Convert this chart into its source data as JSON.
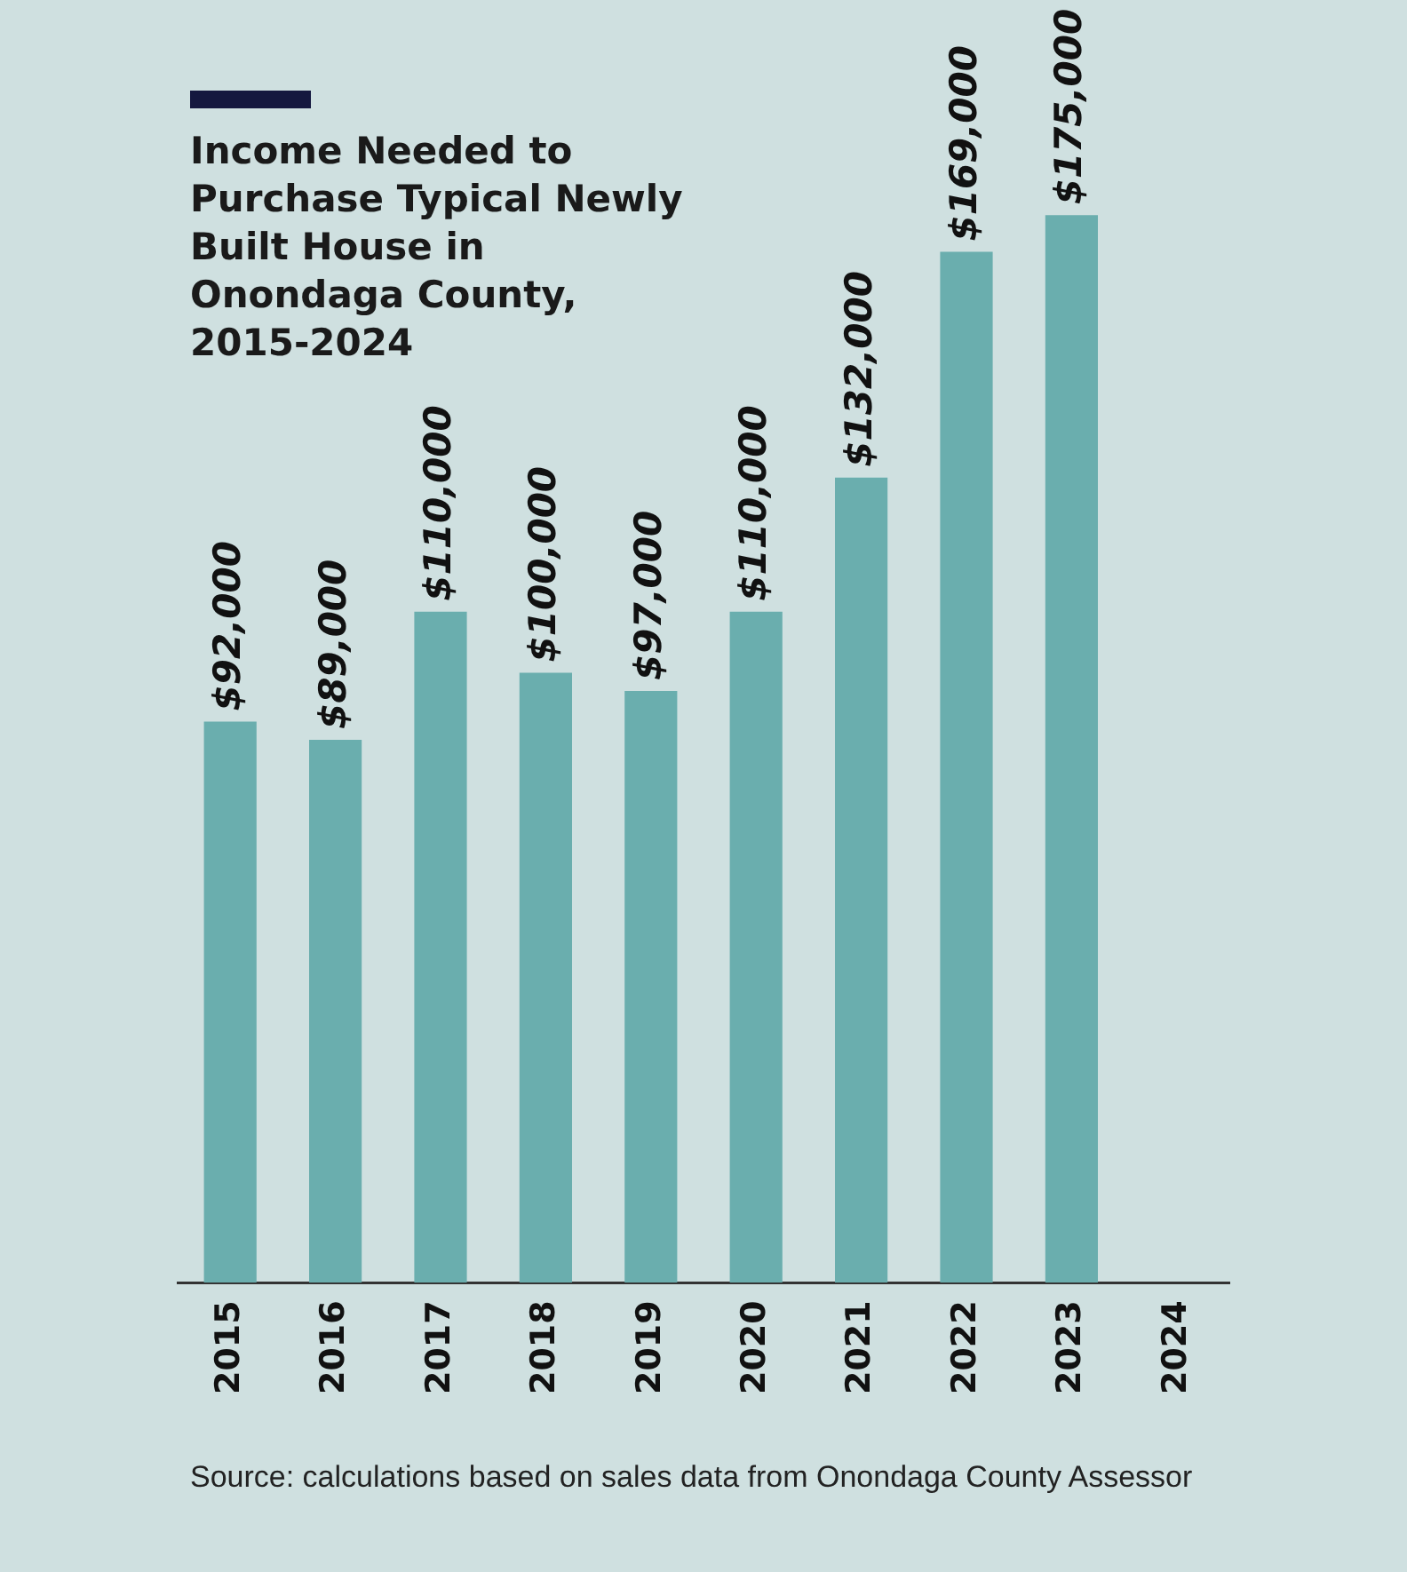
{
  "chart_data": {
    "type": "bar",
    "title": "Income Needed to Purchase Typical Newly Built House in Onondaga County, 2015-2024",
    "categories": [
      "2015",
      "2016",
      "2017",
      "2018",
      "2019",
      "2020",
      "2021",
      "2022",
      "2023",
      "2024"
    ],
    "values": [
      92000,
      89000,
      110000,
      100000,
      97000,
      110000,
      132000,
      169000,
      175000,
      null
    ],
    "value_labels": [
      "$92,000",
      "$89,000",
      "$110,000",
      "$100,000",
      "$97,000",
      "$110,000",
      "$132,000",
      "$169,000",
      "$175,000",
      null
    ],
    "color": "#6aaeae",
    "grid": false,
    "legend": false,
    "tick_labels": "x",
    "annotations": [
      "Source: calculations based on sales data from Onondaga County Assessor"
    ]
  }
}
